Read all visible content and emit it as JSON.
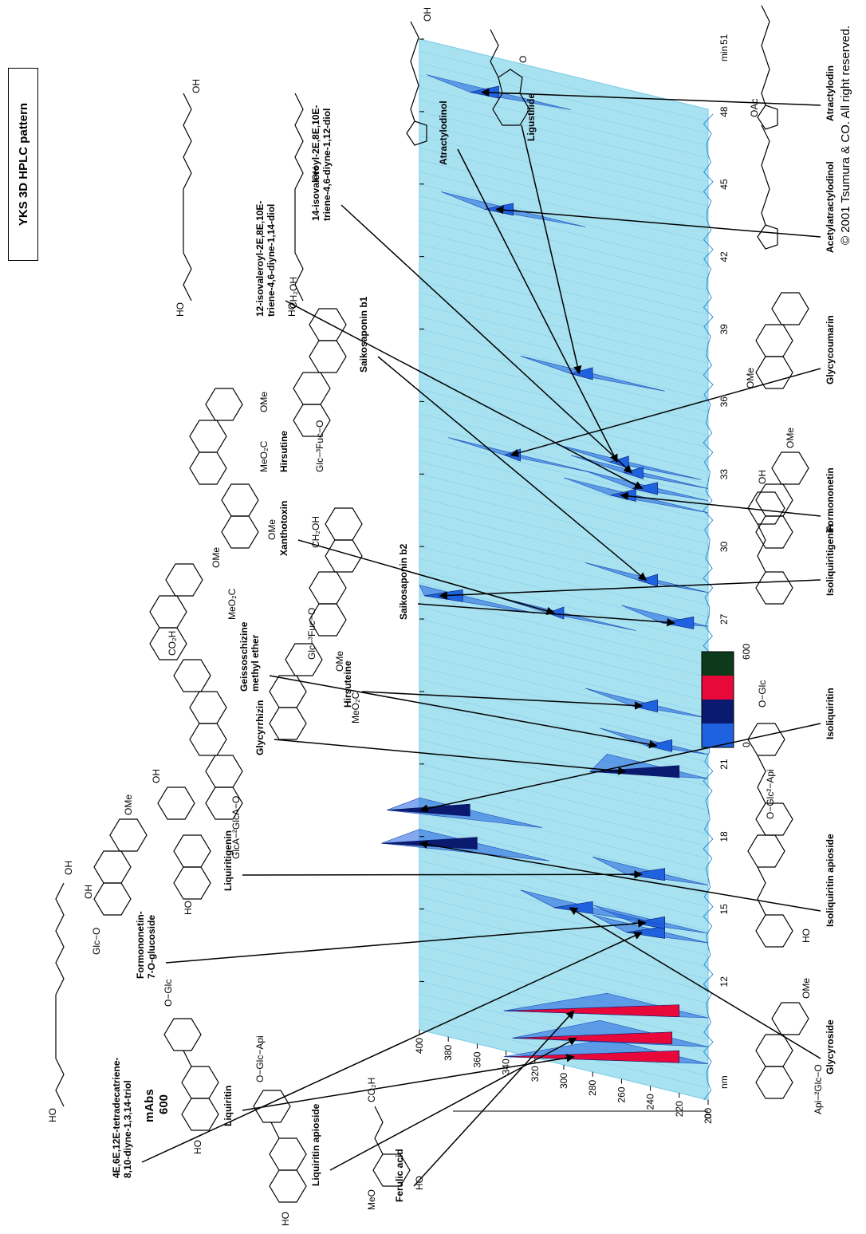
{
  "title": "YKS 3D HPLC pattern",
  "copyright": "© 2001 Tsumura & CO. All right reserved.",
  "chart_data": {
    "type": "area",
    "x_unit": "min",
    "y_unit": "nm",
    "z_unit": "mAbs",
    "z_axis_label": "mAbs",
    "z_axis_value": "600",
    "xlim": [
      10,
      51
    ],
    "ylim": [
      200,
      400
    ],
    "zlim": [
      0,
      600
    ],
    "x_ticks": [
      12,
      15,
      18,
      21,
      24,
      27,
      30,
      33,
      36,
      39,
      42,
      45,
      48,
      51
    ],
    "y_ticks": [
      200,
      220,
      240,
      260,
      280,
      300,
      320,
      340,
      360,
      380,
      400
    ],
    "z_ticks": [
      0,
      200,
      400,
      600
    ],
    "colorbar": {
      "min": 0,
      "max": 600,
      "colors": [
        "#1f62e0",
        "#0a1a6e",
        "#e8093a",
        "#0c3a1a"
      ]
    },
    "peaks": [
      {
        "t": 11.5,
        "wl": 220,
        "h": 0.55,
        "name": "Liquiritin"
      },
      {
        "t": 12.2,
        "wl": 225,
        "h": 0.5,
        "name": "Liquiritin apioside"
      },
      {
        "t": 13.4,
        "wl": 220,
        "h": 0.55,
        "name": "Ferulic acid"
      },
      {
        "t": 16.5,
        "wl": 230,
        "h": 0.12,
        "name": "4E,6E,12E-tetradecatriene-8,10-diyne-1,3,14-triol"
      },
      {
        "t": 16.9,
        "wl": 230,
        "h": 0.1,
        "name": "Formononetin-7-O-glucoside"
      },
      {
        "t": 18.9,
        "wl": 230,
        "h": 0.12,
        "name": "Liquiritigenin"
      },
      {
        "t": 23.3,
        "wl": 220,
        "h": 0.28,
        "name": "Glycyrrhizin"
      },
      {
        "t": 18.3,
        "wl": 360,
        "h": 0.3,
        "name": "Isoliquiritin apioside"
      },
      {
        "t": 19.6,
        "wl": 365,
        "h": 0.26,
        "name": "Isoliquiritin"
      },
      {
        "t": 16.8,
        "wl": 280,
        "h": 0.12,
        "name": "Glycyroside"
      },
      {
        "t": 24.3,
        "wl": 225,
        "h": 0.08,
        "name": "Geissoschizine methyl ether"
      },
      {
        "t": 25.8,
        "wl": 235,
        "h": 0.08,
        "name": "Hirsuteine"
      },
      {
        "t": 28.7,
        "wl": 300,
        "h": 0.05,
        "name": "Xanthotoxin"
      },
      {
        "t": 28.4,
        "wl": 370,
        "h": 0.12,
        "name": "Isoliquiritigenin"
      },
      {
        "t": 29.6,
        "wl": 210,
        "h": 0.1,
        "name": "Saikosaponin b2"
      },
      {
        "t": 31.0,
        "wl": 235,
        "h": 0.06,
        "name": "Saikosaponin b1"
      },
      {
        "t": 34.3,
        "wl": 250,
        "h": 0.08,
        "name": "Formononetin"
      },
      {
        "t": 34.8,
        "wl": 330,
        "h": 0.05,
        "name": "Glycycoumarin"
      },
      {
        "t": 34.8,
        "wl": 235,
        "h": 0.08,
        "name": "12-isovaleroyl-2E,8E,10E-triene-4,6-diyne-1,14-diol"
      },
      {
        "t": 35.3,
        "wl": 245,
        "h": 0.06,
        "name": "14-isovaleroyl-2E,8E,10E-triene-4,6-diyne-1,12-diol"
      },
      {
        "t": 35.6,
        "wl": 255,
        "h": 0.06,
        "name": "Atractylodinol"
      },
      {
        "t": 38.9,
        "wl": 280,
        "h": 0.07,
        "name": "Ligustilide"
      },
      {
        "t": 44.9,
        "wl": 335,
        "h": 0.09,
        "name": "Acetylatractylodinol"
      },
      {
        "t": 49.6,
        "wl": 345,
        "h": 0.09,
        "name": "Atractylodin"
      }
    ]
  },
  "compounds": [
    {
      "id": "triol",
      "lines": [
        "4E,6E,12E-tetradecatriene-",
        "8,10-diyne-1,3,14-triol"
      ]
    },
    {
      "id": "formononetin-glc",
      "lines": [
        "Formononetin-",
        "7-O-glucoside"
      ]
    },
    {
      "id": "liquiritigenin",
      "lines": [
        "Liquiritigenin"
      ]
    },
    {
      "id": "glycyrrhizin",
      "lines": [
        "Glycyrrhizin"
      ]
    },
    {
      "id": "geissoschizine",
      "lines": [
        "Geissoschizine",
        "methyl ether"
      ]
    },
    {
      "id": "hirsuteine",
      "lines": [
        "Hirsuteine"
      ]
    },
    {
      "id": "xanthotoxin",
      "lines": [
        "Xanthotoxin"
      ]
    },
    {
      "id": "hirsutine",
      "lines": [
        "Hirsutine"
      ]
    },
    {
      "id": "saikosaponin-b2",
      "lines": [
        "Saikosaponin b2"
      ]
    },
    {
      "id": "saikosaponin-b1",
      "lines": [
        "Saikosaponin b1"
      ]
    },
    {
      "id": "diol-12",
      "lines": [
        "12-isovaleroyl-2E,8E,10E-",
        "triene-4,6-diyne-1,14-diol"
      ]
    },
    {
      "id": "diol-14",
      "lines": [
        "14-isovaleroyl-2E,8E,10E-",
        "triene-4,6-diyne-1,12-diol"
      ]
    },
    {
      "id": "atractylodinol",
      "lines": [
        "Atractylodinol"
      ]
    },
    {
      "id": "ligustilide",
      "lines": [
        "Ligustilide"
      ]
    },
    {
      "id": "liquiritin",
      "lines": [
        "Liquiritin"
      ]
    },
    {
      "id": "liquiritin-apioside",
      "lines": [
        "Liquiritin apioside"
      ]
    },
    {
      "id": "ferulic",
      "lines": [
        "Ferulic acid"
      ]
    },
    {
      "id": "glycyroside",
      "lines": [
        "Glycyroside"
      ]
    },
    {
      "id": "isoliquiritin-apioside",
      "lines": [
        "Isoliquiritin apioside"
      ]
    },
    {
      "id": "isoliquiritin",
      "lines": [
        "Isoliquiritin"
      ]
    },
    {
      "id": "isoliquiritigenin",
      "lines": [
        "Isoliquiritigenin"
      ]
    },
    {
      "id": "formononetin",
      "lines": [
        "Formononetin"
      ]
    },
    {
      "id": "glycycoumarin",
      "lines": [
        "Glycycoumarin"
      ]
    },
    {
      "id": "acetylatractylodinol",
      "lines": [
        "Acetylatractylodinol"
      ]
    },
    {
      "id": "atractylodin",
      "lines": [
        "Atractylodin"
      ]
    }
  ],
  "structure_text": {
    "api_glc_glycyroside": "Api−²Glc−O",
    "ome": "OMe",
    "o_glc_api_isoliq": "O−Glc²−Api",
    "o_glc": "O−Glc",
    "glc_o": "Glc−O",
    "glca": "GlcA−²GlcA−O",
    "co2h": "CO₂H",
    "meo2c": "MeO₂C",
    "oh": "OH",
    "ho": "HO",
    "oac": "OAc",
    "glc_fuc": "Glc−³Fuc−O",
    "ch2oh": "CH₂OH",
    "meo": "MeO",
    "o_glc_api_liq": "O−Glc−Api",
    "o": "O",
    "h": "H",
    "n": "N"
  }
}
